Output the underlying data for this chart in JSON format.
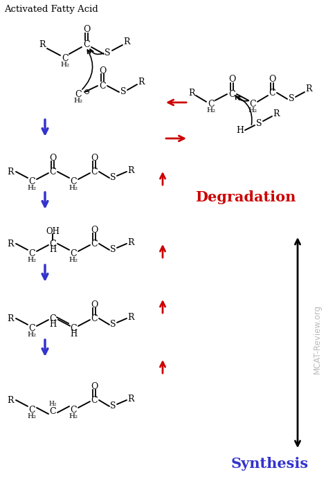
{
  "title": "Activated Fatty Acid",
  "degradation_label": "Degradation",
  "synthesis_label": "Synthesis",
  "watermark": "MCAT-Review.org",
  "bg_color": "#ffffff",
  "blue_color": "#3333cc",
  "red_color": "#cc0000",
  "gray_color": "#bbbbbb",
  "black_color": "#000000",
  "fig_w": 4.71,
  "fig_h": 7.05,
  "dpi": 100
}
